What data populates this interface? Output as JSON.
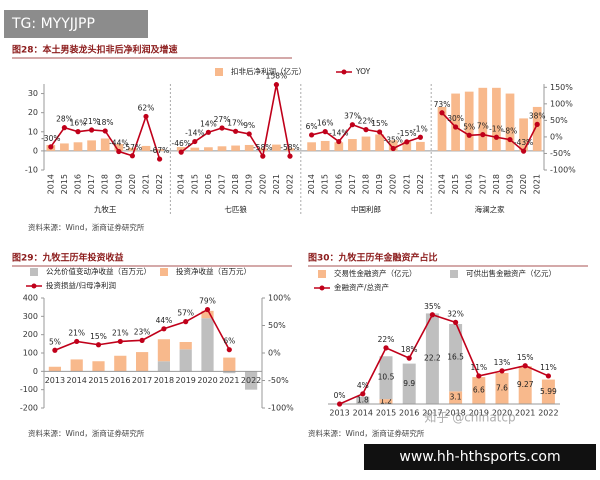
{
  "overlays": {
    "tag": "TG: MYYJJPP",
    "site": "www.hh-hthsports.com",
    "watermark": "知乎 @chinatcp"
  },
  "chart_data": [
    {
      "type": "panel-combo",
      "title": "图28：本土男装龙头扣非后净利润及增速",
      "source": "资料来源：Wind，浙商证券研究所",
      "series": [
        {
          "name": "扣非后净利润（亿元）",
          "color": "#f8b98c",
          "type": "bar"
        },
        {
          "name": "YOY",
          "color": "#c0001a",
          "type": "line",
          "axis": "y2"
        }
      ],
      "panels": [
        {
          "label": "九牧王",
          "categories": [
            "2014",
            "2015",
            "2016",
            "2017",
            "2018",
            "2019",
            "2020",
            "2021",
            "2022"
          ],
          "values": [
            3.1,
            3.9,
            4.5,
            5.5,
            6.5,
            3.6,
            1.6,
            2.6,
            0.9
          ],
          "y2values": [
            -30,
            28,
            16,
            21,
            18,
            -44,
            -57,
            62,
            -67
          ],
          "y2value_labels": [
            "-30%",
            "28%",
            "16%",
            "21%",
            "18%",
            "-44%",
            "-57%",
            "62%",
            "-67%"
          ]
        },
        {
          "label": "七匹狼",
          "categories": [
            "2014",
            "2015",
            "2016",
            "2017",
            "2018",
            "2019",
            "2020",
            "2021",
            "2022"
          ],
          "values": [
            2.0,
            1.7,
            1.9,
            2.4,
            2.8,
            3.1,
            1.3,
            3.3,
            1.4
          ],
          "y2values": [
            -46,
            -14,
            14,
            27,
            17,
            9,
            -58,
            158,
            -58
          ],
          "y2value_labels": [
            "-46%",
            "-14%",
            "14%",
            "27%",
            "17%",
            "9%",
            "-58%",
            "158%",
            "-58%"
          ]
        },
        {
          "label": "中国利郎",
          "categories": [
            "2014",
            "2015",
            "2016",
            "2017",
            "2018",
            "2019",
            "2020",
            "2021",
            "2022"
          ],
          "values": [
            4.5,
            5.2,
            4.5,
            6.2,
            7.5,
            8.6,
            5.6,
            4.8,
            4.7
          ],
          "y2values": [
            6,
            16,
            -14,
            37,
            22,
            15,
            -35,
            -15,
            -1
          ],
          "y2value_labels": [
            "6%",
            "16%",
            "-14%",
            "37%",
            "22%",
            "15%",
            "-35%",
            "-15%",
            "-1%"
          ]
        },
        {
          "label": "海澜之家",
          "categories": [
            "2014",
            "2015",
            "2016",
            "2017",
            "2018",
            "2019",
            "2020",
            "2021"
          ],
          "values": [
            23,
            30,
            31,
            33,
            33,
            30,
            17,
            23
          ],
          "y2values": [
            73,
            30,
            5,
            7,
            -1,
            -8,
            -43,
            38
          ],
          "y2value_labels": [
            "73%",
            "30%",
            "5%",
            "7%",
            "-1%",
            "-8%",
            "-43%",
            "38%"
          ]
        }
      ],
      "ylim": [
        -10,
        35
      ],
      "yticks": [
        -10,
        0,
        10,
        20,
        30
      ],
      "y2lim": [
        -100,
        160
      ],
      "y2ticks": [
        {
          "value": -100,
          "label": "-100%"
        },
        {
          "value": -50,
          "label": "-50%"
        },
        {
          "value": 0,
          "label": "0%"
        },
        {
          "value": 50,
          "label": "50%"
        },
        {
          "value": 100,
          "label": "100%"
        },
        {
          "value": 150,
          "label": "150%"
        }
      ]
    },
    {
      "type": "combo",
      "title": "图29：九牧王历年投资收益",
      "source": "资料来源：Wind，浙商证券研究所",
      "bar_labels": false,
      "categories": [
        "2013",
        "2014",
        "2015",
        "2016",
        "2017",
        "2018",
        "2019",
        "2020",
        "2021",
        "2022"
      ],
      "series": [
        {
          "name": "公允价值变动净收益（百万元）",
          "color": "#bfbfbf",
          "type": "bar",
          "values": [
            null,
            null,
            null,
            null,
            null,
            55,
            120,
            290,
            -10,
            -100
          ]
        },
        {
          "name": "投资净收益（百万元）",
          "color": "#f8b98c",
          "type": "bar",
          "values": [
            25,
            65,
            55,
            85,
            105,
            120,
            40,
            40,
            75,
            null
          ]
        },
        {
          "name": "投资损益/归母净利润",
          "color": "#c0001a",
          "type": "line",
          "axis": "y2",
          "values": [
            5,
            21,
            15,
            21,
            23,
            44,
            57,
            79,
            6,
            null
          ],
          "value_labels": [
            "5%",
            "21%",
            "15%",
            "21%",
            "23%",
            "44%",
            "57%",
            "79%",
            "6%",
            null
          ]
        }
      ],
      "ylim": [
        -200,
        400
      ],
      "yticks": [
        -200,
        -100,
        0,
        100,
        200,
        300,
        400
      ],
      "y2lim": [
        -100,
        100
      ],
      "y2ticks": [
        {
          "value": -100,
          "label": "-100%"
        },
        {
          "value": -50,
          "label": "-50%"
        },
        {
          "value": 0,
          "label": "0%"
        },
        {
          "value": 50,
          "label": "50%"
        },
        {
          "value": 100,
          "label": "100%"
        }
      ]
    },
    {
      "type": "combo",
      "title": "图30：九牧王历年金融资产占比",
      "source": "资料来源：Wind，浙商证券研究所",
      "bar_labels": true,
      "categories": [
        "2013",
        "2014",
        "2015",
        "2016",
        "2017",
        "2018",
        "2019",
        "2020",
        "2021",
        "2022"
      ],
      "series": [
        {
          "name": "交易性金融资产（亿元）",
          "color": "#f8b98c",
          "type": "bar",
          "values": [
            null,
            null,
            1.2,
            null,
            null,
            3.1,
            6.6,
            7.6,
            9.27,
            5.99
          ]
        },
        {
          "name": "可供出售金融资产（亿元）",
          "color": "#bfbfbf",
          "type": "bar",
          "values": [
            null,
            1.8,
            10.5,
            9.9,
            22.2,
            16.5,
            null,
            null,
            null,
            null
          ]
        },
        {
          "name": "金融资产/总资产",
          "color": "#c0001a",
          "type": "line",
          "axis": "y2",
          "values": [
            0,
            4,
            22,
            18,
            35,
            32,
            11,
            13,
            15,
            11
          ],
          "value_labels": [
            "0%",
            "4%",
            "22%",
            "18%",
            "35%",
            "32%",
            "11%",
            "13%",
            "15%",
            "11%"
          ]
        }
      ],
      "ylim": [
        0,
        25
      ],
      "y2lim": [
        0,
        40
      ]
    }
  ]
}
